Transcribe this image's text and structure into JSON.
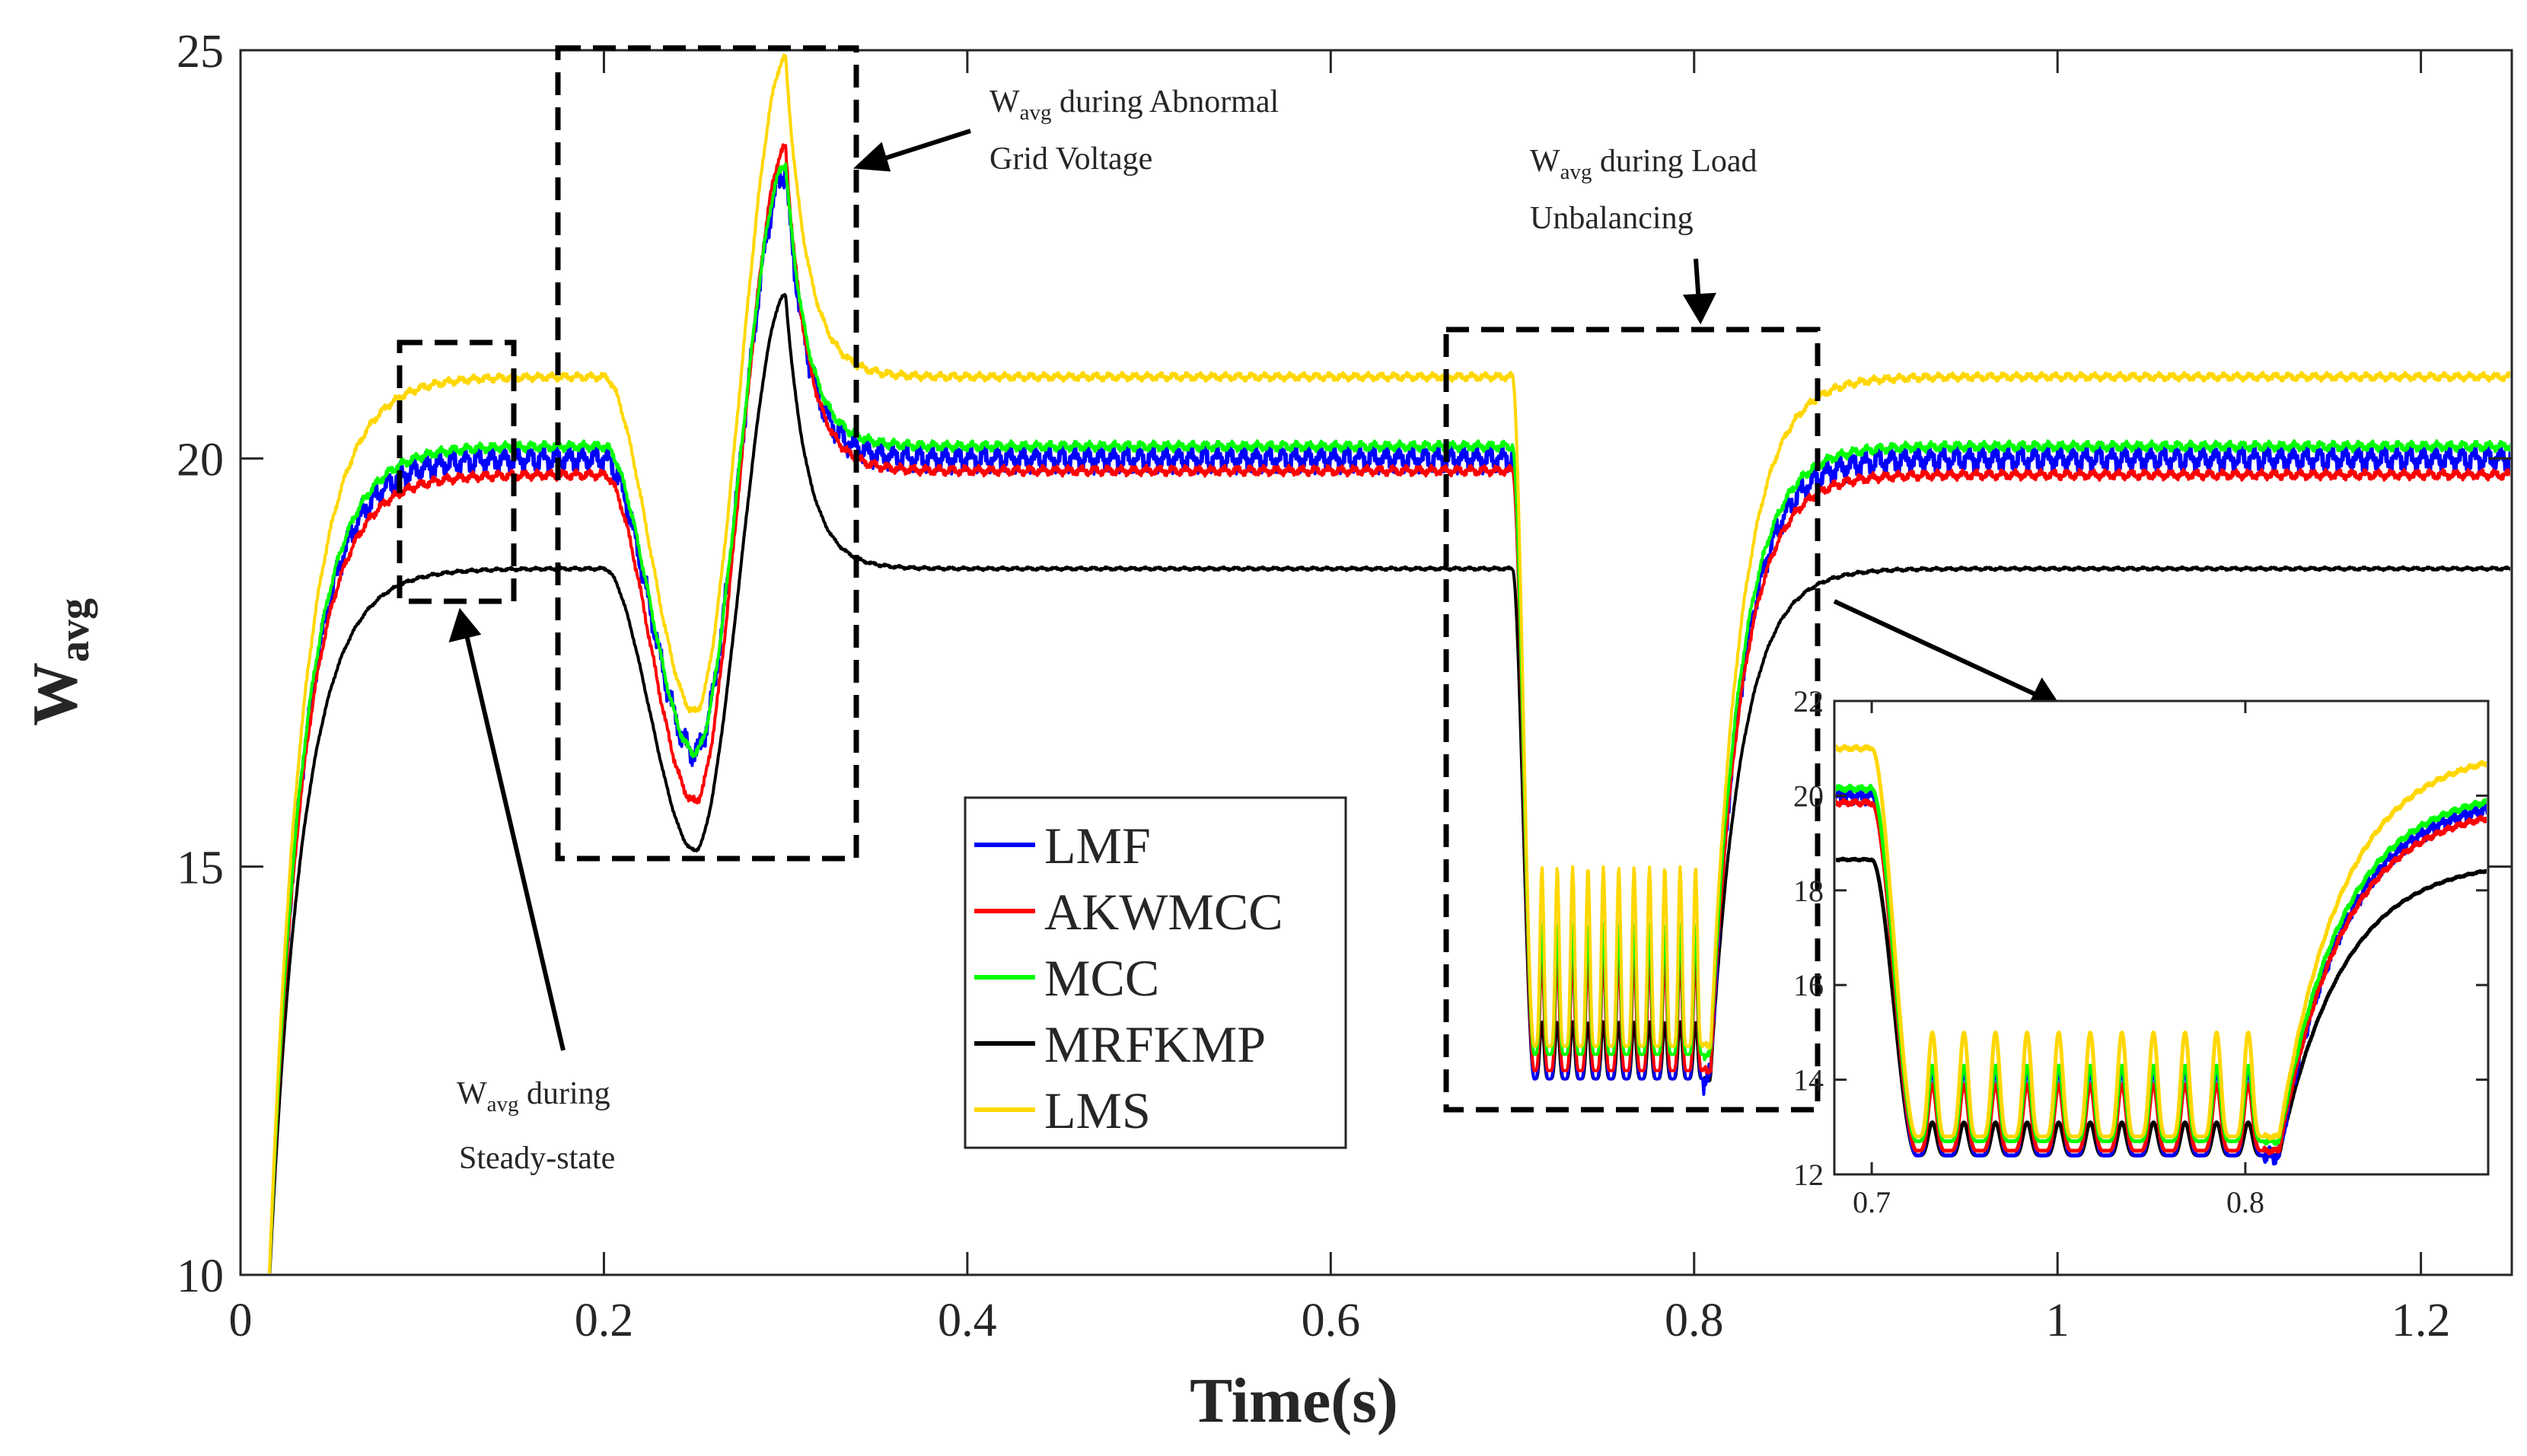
{
  "chart_data": {
    "type": "line",
    "title": "",
    "xlabel": "Time(s)",
    "ylabel": "W",
    "ylabel_sub": "avg",
    "xlim": [
      0,
      1.25
    ],
    "ylim": [
      10,
      25
    ],
    "xticks": [
      "0",
      "0.2",
      "0.4",
      "0.6",
      "0.8",
      "1",
      "1.2"
    ],
    "yticks": [
      "10",
      "15",
      "20",
      "25"
    ],
    "legend_position": "center-bottom",
    "colors": {
      "LMF": "#0000ff",
      "AKWMCC": "#ff0000",
      "MCC": "#00ff00",
      "MRFKMP": "#000000",
      "LMS": "#ffd700"
    },
    "series": [
      {
        "name": "LMF",
        "steady_1": 20.0,
        "abnormal_min": 16.4,
        "abnormal_peak": 23.5,
        "steady_2": 20.0,
        "unbalance_range": [
          12.4,
          14.2
        ],
        "steady_3": 20.0,
        "ripple": 0.35
      },
      {
        "name": "AKWMCC",
        "steady_1": 19.8,
        "abnormal_min": 15.8,
        "abnormal_peak": 23.8,
        "steady_2": 19.85,
        "unbalance_range": [
          12.5,
          13.9
        ],
        "steady_3": 19.8,
        "ripple": 0.12
      },
      {
        "name": "MCC",
        "steady_1": 20.15,
        "abnormal_min": 16.4,
        "abnormal_peak": 23.6,
        "steady_2": 20.15,
        "unbalance_range": [
          12.7,
          14.3
        ],
        "steady_3": 20.15,
        "ripple": 0.12
      },
      {
        "name": "MRFKMP",
        "steady_1": 18.65,
        "abnormal_min": 15.2,
        "abnormal_peak": 22.0,
        "steady_2": 18.65,
        "unbalance_range": [
          12.4,
          13.1
        ],
        "steady_3": 18.65,
        "ripple": 0.04
      },
      {
        "name": "LMS",
        "steady_1": 21.0,
        "abnormal_min": 16.9,
        "abnormal_peak": 24.9,
        "steady_2": 21.0,
        "unbalance_range": [
          12.8,
          15.0
        ],
        "steady_3": 21.0,
        "ripple": 0.1
      }
    ],
    "events": {
      "startup_time": 0.015,
      "abnormal_grid_voltage": [
        0.2,
        0.32
      ],
      "load_unbalancing": [
        0.7,
        0.805
      ],
      "unbalance_oscillations": 11
    },
    "annotations": [
      {
        "main": "W",
        "sub": "avg",
        "rest": " during Abnormal",
        "line2": "Grid Voltage"
      },
      {
        "main": "W",
        "sub": "avg",
        "rest": " during Load",
        "line2": "Unbalancing"
      },
      {
        "main": "W",
        "sub": "avg",
        "rest": " during",
        "line2": "Steady-state"
      }
    ],
    "inset": {
      "xlim": [
        0.69,
        0.865
      ],
      "ylim": [
        12,
        22
      ],
      "xticks": [
        "0.7",
        "0.8"
      ],
      "yticks": [
        "12",
        "14",
        "16",
        "18",
        "20",
        "22"
      ]
    }
  }
}
